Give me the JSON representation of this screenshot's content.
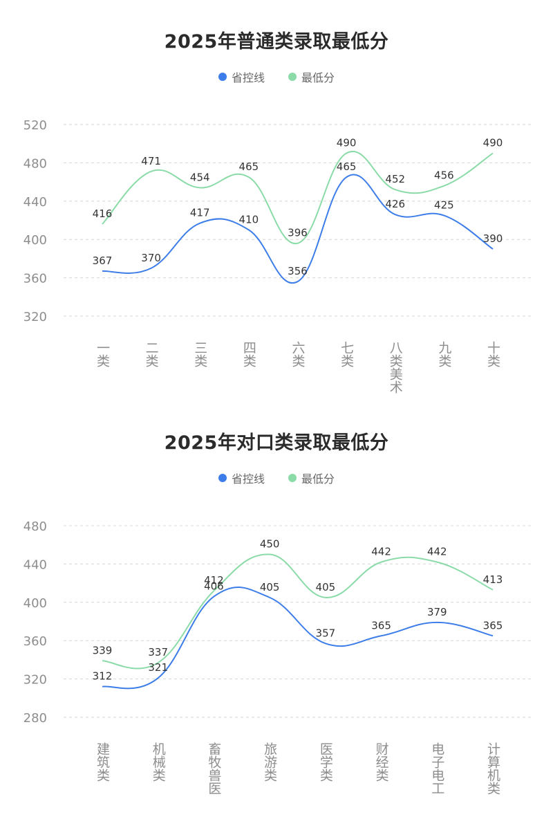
{
  "colors": {
    "series_blue": "#3d7de9",
    "series_green": "#8bdba8"
  },
  "chart_data": [
    {
      "type": "line",
      "title": "2025年普通类录取最低分",
      "categories": [
        "一类",
        "二类",
        "三类",
        "四类",
        "六类",
        "七类",
        "八类美术",
        "九类",
        "十类"
      ],
      "series": [
        {
          "name": "省控线",
          "color": "#3d7de9",
          "values": [
            367,
            370,
            417,
            410,
            356,
            465,
            426,
            425,
            390
          ]
        },
        {
          "name": "最低分",
          "color": "#8bdba8",
          "values": [
            416,
            471,
            454,
            465,
            396,
            490,
            452,
            456,
            490
          ]
        }
      ],
      "yticks": [
        320,
        360,
        400,
        440,
        480,
        520
      ],
      "ylim": [
        300,
        540
      ],
      "grid": true,
      "smooth": true,
      "legend_position": "top-center"
    },
    {
      "type": "line",
      "title": "2025年对口类录取最低分",
      "categories": [
        "建筑类",
        "机械类",
        "畜牧兽医",
        "旅游类",
        "医学类",
        "财经类",
        "电子电工",
        "计算机类"
      ],
      "series": [
        {
          "name": "省控线",
          "color": "#3d7de9",
          "values": [
            312,
            321,
            406,
            405,
            357,
            365,
            379,
            365
          ]
        },
        {
          "name": "最低分",
          "color": "#8bdba8",
          "values": [
            339,
            337,
            412,
            450,
            405,
            442,
            442,
            413
          ]
        }
      ],
      "yticks": [
        280,
        320,
        360,
        400,
        440,
        480
      ],
      "ylim": [
        260,
        500
      ],
      "grid": true,
      "smooth": true,
      "legend_position": "top-center"
    }
  ]
}
